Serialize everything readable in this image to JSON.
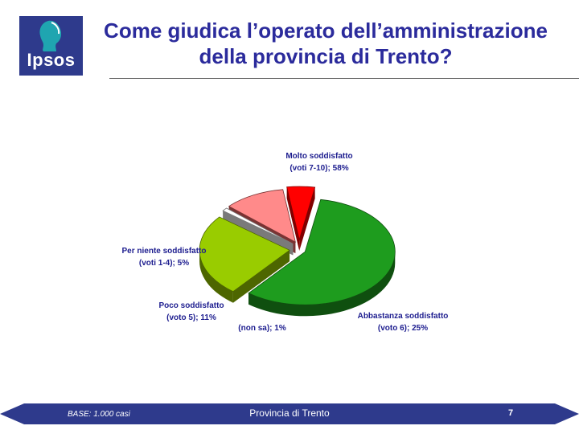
{
  "logo": {
    "text": "Ipsos"
  },
  "title": {
    "line1": "Come giudica l’operato dell’amministrazione",
    "line2": "della provincia di Trento?"
  },
  "chart_data": {
    "type": "pie",
    "title": "",
    "slices": [
      {
        "label_line1": "Molto soddisfatto",
        "label_line2": "(voti 7-10); 58%",
        "value": 58,
        "color": "#1e9c1e",
        "side": "#0f4f0f"
      },
      {
        "label_line1": "Abbastanza soddisfatto",
        "label_line2": "(voto 6); 25%",
        "value": 25,
        "color": "#99cc00",
        "side": "#4d6600"
      },
      {
        "label_line1": "(non sa); 1%",
        "label_line2": "",
        "value": 1,
        "color": "#ffffff",
        "side": "#7a7a7a"
      },
      {
        "label_line1": "Poco soddisfatto",
        "label_line2": "(voto 5); 11%",
        "value": 11,
        "color": "#ff8a8a",
        "side": "#7a3333"
      },
      {
        "label_line1": "Per niente soddisfatto",
        "label_line2": "(voti 1-4); 5%",
        "value": 5,
        "color": "#ff0000",
        "side": "#800000"
      }
    ]
  },
  "footer": {
    "base": "BASE: 1.000 casi",
    "center": "Provincia di Trento",
    "page": "7",
    "color": "#2e3a8c"
  }
}
